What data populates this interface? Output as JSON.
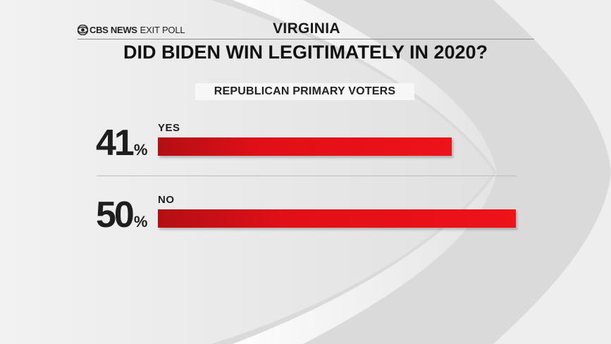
{
  "header": {
    "brand_main": "CBS NEWS",
    "brand_sub": "EXIT POLL",
    "brand_icon": "cbs-eye-icon",
    "state": "VIRGINIA"
  },
  "chart_data": {
    "type": "bar",
    "orientation": "horizontal",
    "title": "DID BIDEN WIN LEGITIMATELY IN 2020?",
    "subtitle": "REPUBLICAN PRIMARY VOTERS",
    "categories": [
      "YES",
      "NO"
    ],
    "values": [
      41,
      50
    ],
    "value_labels": [
      "41",
      "50"
    ],
    "unit": "%",
    "xlim": [
      0,
      50
    ],
    "grid": false,
    "colors": {
      "bar": "#e10f18",
      "bar_dark": "#b30f14"
    }
  }
}
